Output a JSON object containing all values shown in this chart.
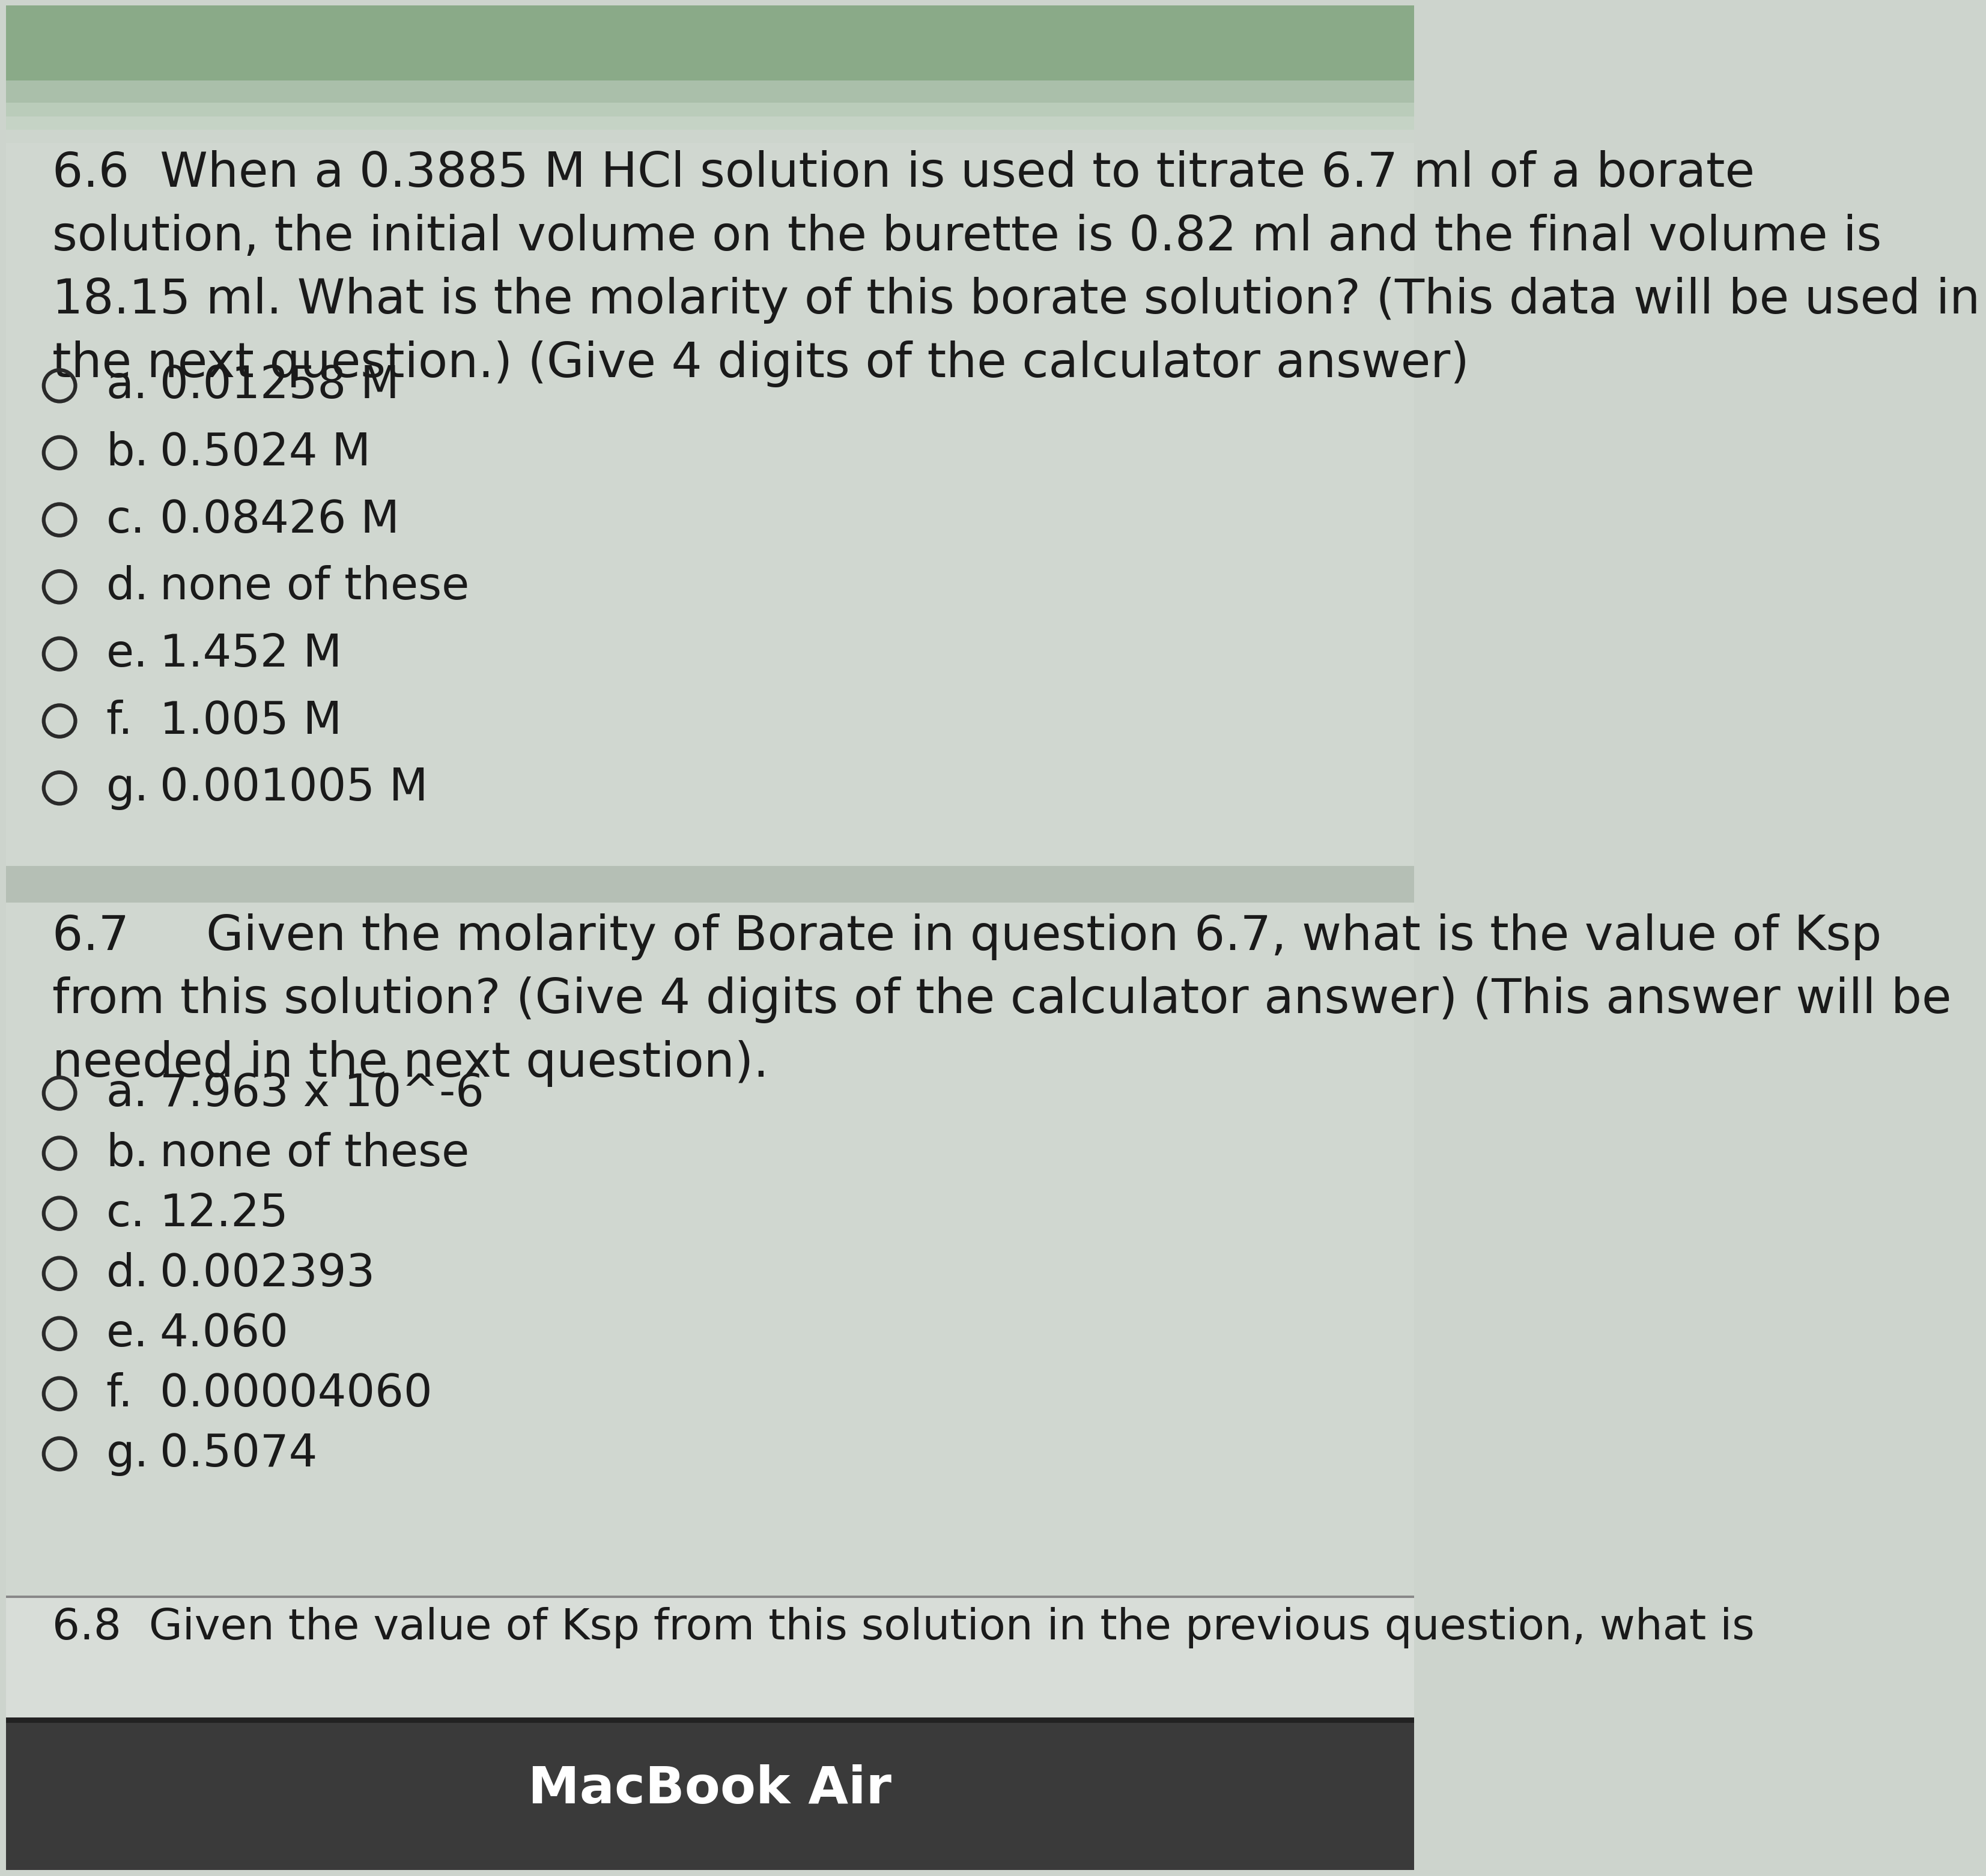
{
  "text_color": "#1a1a1a",
  "q66_header": "6.6  When a 0.3885 M HCl solution is used to titrate 6.7 ml of a borate\nsolution, the initial volume on the burette is 0.82 ml and the final volume is\n18.15 ml. What is the molarity of this borate solution? (This data will be used in\nthe next question.) (Give 4 digits of the calculator answer)",
  "q66_choices": [
    [
      "a.",
      "0.01258 M"
    ],
    [
      "b.",
      "0.5024 M"
    ],
    [
      "c.",
      "0.08426 M"
    ],
    [
      "d.",
      "none of these"
    ],
    [
      "e.",
      "1.452 M"
    ],
    [
      "f.",
      "1.005 M"
    ],
    [
      "g.",
      "0.001005 M"
    ]
  ],
  "q67_header": "6.7     Given the molarity of Borate in question 6.7, what is the value of Ksp\nfrom this solution? (Give 4 digits of the calculator answer) (This answer will be\nneeded in the next question).",
  "q67_choices": [
    [
      "a.",
      "7.963 x 10^-6"
    ],
    [
      "b.",
      "none of these"
    ],
    [
      "c.",
      "12.25"
    ],
    [
      "d.",
      "0.002393"
    ],
    [
      "e.",
      "4.060"
    ],
    [
      "f.",
      "0.00004060"
    ],
    [
      "g.",
      "0.5074"
    ]
  ],
  "q68_text": "6.8  Given the value of Ksp from this solution in the previous question, what is",
  "footer_text": "MacBook Air",
  "bg_main": "#cdd4cd",
  "bg_section": "#d2d8d2",
  "bg_separator": "#b8c2b8",
  "bg_bottom_bar": "#c8d0c8",
  "bg_dark": "#3a3a3a",
  "bg_top_green": "#8aaa8a",
  "bg_top_light": "#d8e0d8",
  "font_size_question": 58,
  "font_size_choice": 54,
  "font_size_footer": 62,
  "font_size_q68": 52
}
